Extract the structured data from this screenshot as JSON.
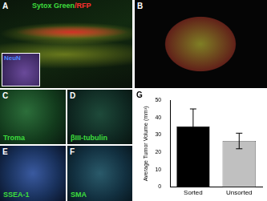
{
  "panels": [
    {
      "label": "A",
      "title": [
        "Sytox Green",
        "/RFP"
      ],
      "inset": "NeuN"
    },
    {
      "label": "B"
    },
    {
      "label": "C",
      "stain": "Troma"
    },
    {
      "label": "D",
      "stain": "βIII-tubulin"
    },
    {
      "label": "E",
      "stain": "SSEA-1"
    },
    {
      "label": "F",
      "stain": "SMA"
    }
  ],
  "chart_data": {
    "label": "G",
    "type": "bar",
    "categories": [
      "Sorted",
      "Unsorted"
    ],
    "values": [
      35,
      26.5
    ],
    "errors": [
      10,
      4.5
    ],
    "colors": [
      "#000000",
      "#c0c0c0"
    ],
    "y_label": "Average Tumor Volume (mm³)",
    "ylim": [
      0,
      50
    ],
    "yticks": [
      0,
      10,
      20,
      30,
      40,
      50
    ],
    "grid": false
  }
}
